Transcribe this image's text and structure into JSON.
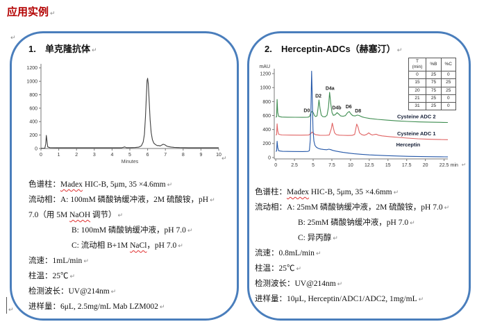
{
  "page": {
    "title": "应用实例"
  },
  "marks": {
    "return": "↵"
  },
  "panel1": {
    "number": "1.",
    "title": "单克隆抗体",
    "specs": [
      {
        "indent": false,
        "segments": [
          {
            "t": "色谱柱："
          },
          {
            "t": "Madex",
            "sp": true
          },
          {
            "t": " HIC-B, 5μm, 35 ×4.6mm"
          }
        ]
      },
      {
        "indent": false,
        "segments": [
          {
            "t": "流动相：A: 100mM 磷酸钠缓冲液，2M 硫酸铵，pH"
          }
        ]
      },
      {
        "indent": false,
        "segments": [
          {
            "t": "7.0（用 5M "
          },
          {
            "t": "NaOH",
            "sp": true
          },
          {
            "t": " 调节）"
          }
        ]
      },
      {
        "indent": true,
        "segments": [
          {
            "t": "B: 100mM 磷酸钠缓冲液，pH 7.0"
          }
        ]
      },
      {
        "indent": true,
        "segments": [
          {
            "t": "C: 流动相 B+1M "
          },
          {
            "t": "NaCl",
            "sp": true
          },
          {
            "t": "，pH 7.0"
          }
        ]
      },
      {
        "indent": false,
        "segments": [
          {
            "t": "流速：1mL/min"
          }
        ]
      },
      {
        "indent": false,
        "segments": [
          {
            "t": "柱温：25℃"
          }
        ]
      },
      {
        "indent": false,
        "segments": [
          {
            "t": "检测波长：UV@214nm"
          }
        ]
      },
      {
        "indent": false,
        "segments": [
          {
            "t": "进样量：6μL, 2.5mg/mL Mab LZM002"
          }
        ]
      }
    ]
  },
  "panel2": {
    "number": "2.",
    "title": "Herceptin-ADCs（赫塞汀）",
    "gradient_table": {
      "headers": [
        "T\n(min)",
        "%B",
        "%C"
      ],
      "rows": [
        [
          0,
          25,
          0
        ],
        [
          15,
          75,
          25
        ],
        [
          20,
          75,
          25
        ],
        [
          21,
          25,
          0
        ],
        [
          31,
          25,
          0
        ]
      ]
    },
    "specs": [
      {
        "indent": false,
        "segments": [
          {
            "t": "色谱柱："
          },
          {
            "t": "Madex",
            "sp": true
          },
          {
            "t": " HIC-B, 5μm, 35 ×4.6mm"
          }
        ]
      },
      {
        "indent": false,
        "segments": [
          {
            "t": "流动相：A: 25mM 磷酸钠缓冲液，2M 硫酸铵，pH 7.0"
          }
        ]
      },
      {
        "indent": true,
        "segments": [
          {
            "t": "B: 25mM 磷酸钠缓冲液，pH 7.0"
          }
        ]
      },
      {
        "indent": true,
        "segments": [
          {
            "t": "C: 异丙醇"
          }
        ]
      },
      {
        "indent": false,
        "segments": [
          {
            "t": "流速：0.8mL/min"
          }
        ]
      },
      {
        "indent": false,
        "segments": [
          {
            "t": "柱温：25℃"
          }
        ]
      },
      {
        "indent": false,
        "segments": [
          {
            "t": "检测波长：UV@214nm"
          }
        ]
      },
      {
        "indent": false,
        "segments": [
          {
            "t": "进样量：10μL, Herceptin/ADC1/ADC2, 1mg/mL"
          }
        ]
      }
    ]
  },
  "chart_data": [
    {
      "type": "line",
      "title": "Mab LZM002 chromatogram",
      "xlabel": "Minutes",
      "ylabel": "",
      "xlim": [
        0,
        10
      ],
      "ylim": [
        0,
        1260
      ],
      "xticks": [
        0,
        1,
        2,
        3,
        4,
        5,
        6,
        7,
        8,
        9,
        10
      ],
      "yticks": [
        0,
        200,
        400,
        600,
        800,
        1000,
        1200
      ],
      "grid": false,
      "series": [
        {
          "name": "Mab LZM002",
          "color": "#3f3f3f",
          "points": [
            [
              0,
              3
            ],
            [
              0.22,
              4
            ],
            [
              0.27,
              70
            ],
            [
              0.3,
              196
            ],
            [
              0.34,
              110
            ],
            [
              0.38,
              24
            ],
            [
              0.5,
              12
            ],
            [
              0.9,
              11
            ],
            [
              1.6,
              11
            ],
            [
              2.4,
              11
            ],
            [
              3.2,
              11
            ],
            [
              4.0,
              11
            ],
            [
              4.55,
              11
            ],
            [
              4.72,
              24
            ],
            [
              4.8,
              12
            ],
            [
              5.0,
              12
            ],
            [
              5.3,
              14
            ],
            [
              5.5,
              20
            ],
            [
              5.65,
              40
            ],
            [
              5.75,
              95
            ],
            [
              5.82,
              210
            ],
            [
              5.88,
              470
            ],
            [
              5.93,
              780
            ],
            [
              5.97,
              1010
            ],
            [
              6.0,
              1045
            ],
            [
              6.04,
              960
            ],
            [
              6.09,
              700
            ],
            [
              6.14,
              430
            ],
            [
              6.2,
              240
            ],
            [
              6.27,
              130
            ],
            [
              6.35,
              80
            ],
            [
              6.44,
              58
            ],
            [
              6.5,
              50
            ],
            [
              6.56,
              42
            ],
            [
              6.63,
              44
            ],
            [
              6.7,
              37
            ],
            [
              6.78,
              50
            ],
            [
              6.88,
              63
            ],
            [
              6.97,
              56
            ],
            [
              7.07,
              36
            ],
            [
              7.17,
              28
            ],
            [
              7.32,
              22
            ],
            [
              7.5,
              17
            ],
            [
              7.8,
              13
            ],
            [
              8.3,
              11
            ],
            [
              9.1,
              11
            ],
            [
              10,
              11
            ]
          ]
        }
      ]
    },
    {
      "type": "line",
      "title": "Herceptin-ADCs chromatogram",
      "xlabel": "min",
      "ylabel": "mAU",
      "xlim": [
        -0.2,
        23
      ],
      "ylim": [
        -20,
        1270
      ],
      "xticks": [
        0,
        2.5,
        5,
        7.5,
        10,
        12.5,
        15,
        17.5,
        20,
        22.5
      ],
      "yticks": [
        0,
        200,
        400,
        600,
        800,
        1000,
        1200
      ],
      "grid": false,
      "peak_labels": [
        {
          "text": "D0",
          "x": 4.15,
          "y": 650
        },
        {
          "text": "D2",
          "x": 5.7,
          "y": 860
        },
        {
          "text": "D4a",
          "x": 7.25,
          "y": 965
        },
        {
          "text": "D4b",
          "x": 8.15,
          "y": 690
        },
        {
          "text": "D6",
          "x": 9.75,
          "y": 705
        },
        {
          "text": "D8",
          "x": 11.0,
          "y": 645
        }
      ],
      "trace_labels": [
        {
          "text": "Cysteine ADC 2",
          "x": 18.8,
          "y": 560
        },
        {
          "text": "Cysteine ADC 1",
          "x": 18.8,
          "y": 318
        },
        {
          "text": "Herceptin",
          "x": 17.7,
          "y": 158
        }
      ],
      "series": [
        {
          "name": "Cysteine ADC 2",
          "color": "#3d8c4f",
          "points": [
            [
              0,
              578
            ],
            [
              0.12,
              582
            ],
            [
              0.18,
              830
            ],
            [
              0.26,
              645
            ],
            [
              0.38,
              588
            ],
            [
              0.8,
              578
            ],
            [
              1.6,
              576
            ],
            [
              2.6,
              575
            ],
            [
              3.6,
              574
            ],
            [
              4.2,
              575
            ],
            [
              4.5,
              582
            ],
            [
              4.72,
              645
            ],
            [
              4.88,
              662
            ],
            [
              5.02,
              638
            ],
            [
              5.18,
              598
            ],
            [
              5.35,
              586
            ],
            [
              5.52,
              596
            ],
            [
              5.66,
              705
            ],
            [
              5.78,
              822
            ],
            [
              5.92,
              705
            ],
            [
              6.08,
              606
            ],
            [
              6.3,
              584
            ],
            [
              6.6,
              582
            ],
            [
              6.85,
              605
            ],
            [
              7.05,
              720
            ],
            [
              7.2,
              932
            ],
            [
              7.36,
              762
            ],
            [
              7.52,
              642
            ],
            [
              7.7,
              603
            ],
            [
              7.95,
              612
            ],
            [
              8.2,
              642
            ],
            [
              8.45,
              618
            ],
            [
              8.68,
              594
            ],
            [
              9.0,
              590
            ],
            [
              9.3,
              598
            ],
            [
              9.6,
              642
            ],
            [
              9.82,
              658
            ],
            [
              10.05,
              622
            ],
            [
              10.3,
              598
            ],
            [
              10.6,
              594
            ],
            [
              10.9,
              606
            ],
            [
              11.15,
              600
            ],
            [
              11.5,
              582
            ],
            [
              11.9,
              570
            ],
            [
              12.6,
              558
            ],
            [
              13.6,
              546
            ],
            [
              14.8,
              535
            ],
            [
              16.2,
              524
            ],
            [
              17.6,
              516
            ],
            [
              19.2,
              509
            ],
            [
              20.8,
              505
            ],
            [
              22.4,
              502
            ],
            [
              23,
              501
            ]
          ]
        },
        {
          "name": "Cysteine ADC 1",
          "color": "#e06262",
          "points": [
            [
              0,
              322
            ],
            [
              0.12,
              326
            ],
            [
              0.18,
              482
            ],
            [
              0.26,
              382
            ],
            [
              0.38,
              332
            ],
            [
              0.8,
              322
            ],
            [
              2,
              320
            ],
            [
              3.4,
              319
            ],
            [
              4.4,
              321
            ],
            [
              4.68,
              342
            ],
            [
              4.88,
              364
            ],
            [
              5.08,
              342
            ],
            [
              5.3,
              326
            ],
            [
              5.9,
              318
            ],
            [
              6.7,
              317
            ],
            [
              7.15,
              321
            ],
            [
              7.42,
              410
            ],
            [
              7.56,
              492
            ],
            [
              7.7,
              424
            ],
            [
              7.86,
              352
            ],
            [
              8.1,
              327
            ],
            [
              8.5,
              319
            ],
            [
              9,
              317
            ],
            [
              9.6,
              315
            ],
            [
              10.2,
              316
            ],
            [
              10.55,
              330
            ],
            [
              10.82,
              478
            ],
            [
              11.0,
              434
            ],
            [
              11.2,
              352
            ],
            [
              11.5,
              326
            ],
            [
              11.85,
              318
            ],
            [
              12.15,
              330
            ],
            [
              12.42,
              352
            ],
            [
              12.68,
              332
            ],
            [
              12.9,
              321
            ],
            [
              13.15,
              328
            ],
            [
              13.42,
              333
            ],
            [
              13.7,
              319
            ],
            [
              14.2,
              309
            ],
            [
              15.2,
              299
            ],
            [
              16.4,
              288
            ],
            [
              17.6,
              278
            ],
            [
              19,
              268
            ],
            [
              20.5,
              261
            ],
            [
              22,
              257
            ],
            [
              23,
              255
            ]
          ]
        },
        {
          "name": "Herceptin",
          "color": "#2457a8",
          "points": [
            [
              0,
              88
            ],
            [
              0.12,
              92
            ],
            [
              0.18,
              232
            ],
            [
              0.26,
              142
            ],
            [
              0.38,
              96
            ],
            [
              0.9,
              88
            ],
            [
              2.2,
              86
            ],
            [
              3.6,
              85
            ],
            [
              4.3,
              87
            ],
            [
              4.5,
              98
            ],
            [
              4.62,
              250
            ],
            [
              4.72,
              800
            ],
            [
              4.79,
              1235
            ],
            [
              4.88,
              880
            ],
            [
              4.98,
              400
            ],
            [
              5.1,
              235
            ],
            [
              5.25,
              172
            ],
            [
              5.45,
              145
            ],
            [
              5.7,
              130
            ],
            [
              6.0,
              121
            ],
            [
              6.4,
              115
            ],
            [
              6.8,
              111
            ],
            [
              7.1,
              119
            ],
            [
              7.35,
              112
            ],
            [
              7.65,
              101
            ],
            [
              8.0,
              92
            ],
            [
              8.5,
              82
            ],
            [
              9.0,
              73
            ],
            [
              9.7,
              63
            ],
            [
              10.5,
              53
            ],
            [
              11.5,
              45
            ],
            [
              12.5,
              38
            ],
            [
              13.5,
              33
            ],
            [
              14.8,
              27
            ],
            [
              16.2,
              22
            ],
            [
              17.8,
              17
            ],
            [
              19.4,
              14
            ],
            [
              21,
              12
            ],
            [
              22.6,
              10
            ],
            [
              23,
              9
            ]
          ]
        }
      ]
    }
  ]
}
